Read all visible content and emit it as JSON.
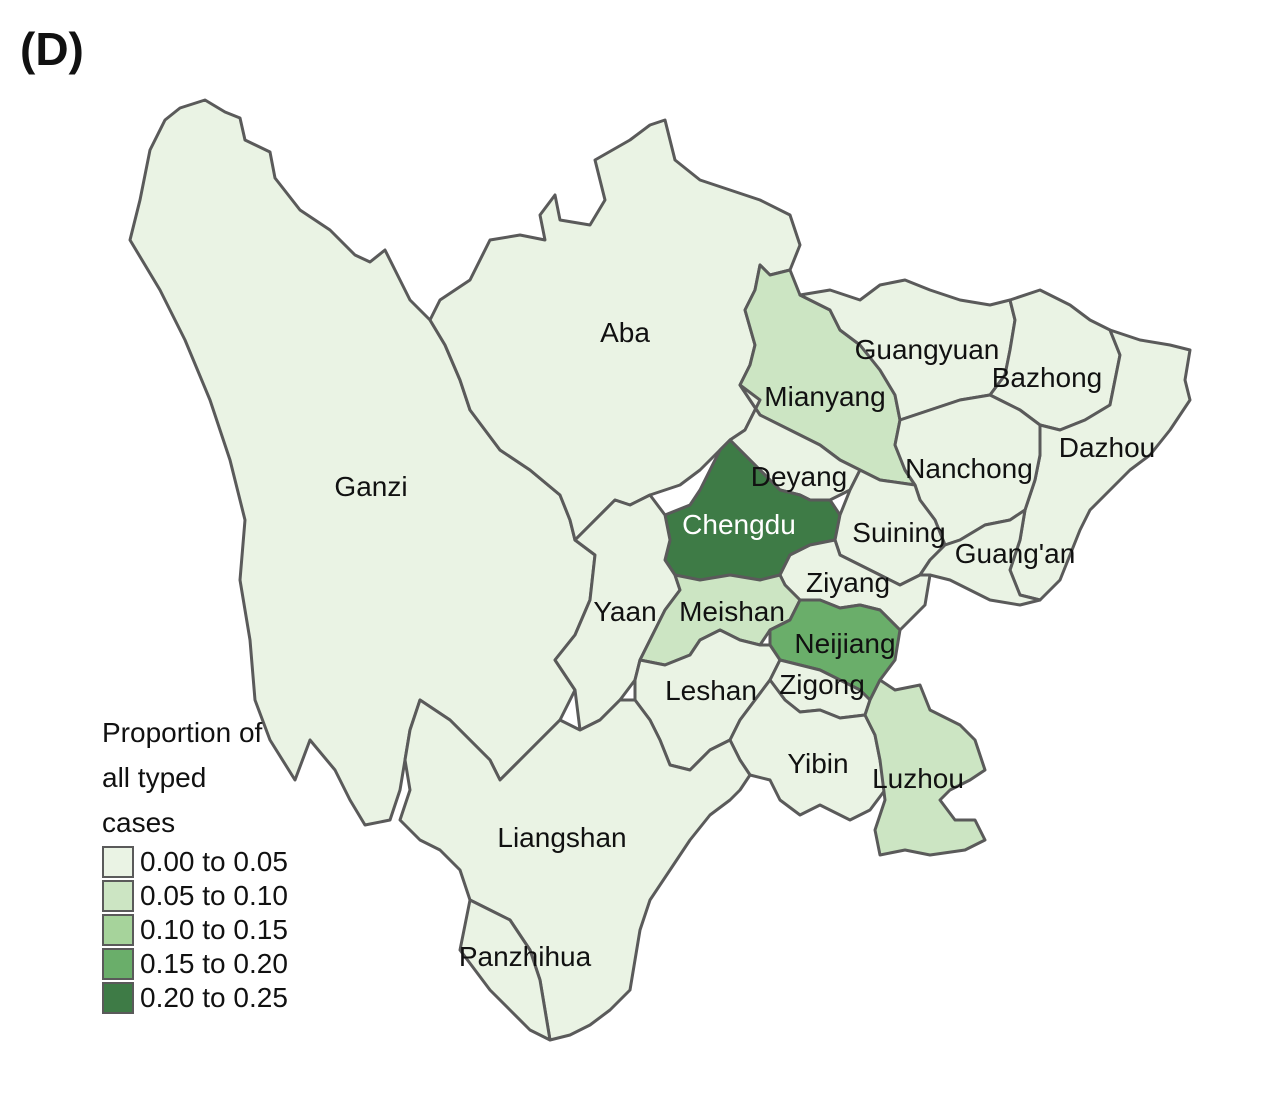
{
  "panel_label": "(D)",
  "colors": {
    "c0": "#eaf3e4",
    "c1": "#cce5c3",
    "c2": "#a6d39b",
    "c3": "#6aae6a",
    "c4": "#3e7b46",
    "border": "#5a5a5a"
  },
  "legend": {
    "title": "Proportion of\nall typed\ncases",
    "bins": [
      {
        "label": "0.00 to 0.05",
        "color": "#eaf3e4"
      },
      {
        "label": "0.05 to 0.10",
        "color": "#cce5c3"
      },
      {
        "label": "0.10 to 0.15",
        "color": "#a6d39b"
      },
      {
        "label": "0.15 to 0.20",
        "color": "#6aae6a"
      },
      {
        "label": "0.20 to 0.25",
        "color": "#3e7b46"
      }
    ]
  },
  "regions": [
    {
      "name": "Ganzi",
      "bin": 0
    },
    {
      "name": "Aba",
      "bin": 0
    },
    {
      "name": "Guangyuan",
      "bin": 0
    },
    {
      "name": "Bazhong",
      "bin": 0
    },
    {
      "name": "Dazhou",
      "bin": 0
    },
    {
      "name": "Mianyang",
      "bin": 1
    },
    {
      "name": "Nanchong",
      "bin": 0
    },
    {
      "name": "Deyang",
      "bin": 0
    },
    {
      "name": "Chengdu",
      "bin": 4
    },
    {
      "name": "Suining",
      "bin": 0
    },
    {
      "name": "Guang'an",
      "bin": 0
    },
    {
      "name": "Ziyang",
      "bin": 0
    },
    {
      "name": "Yaan",
      "bin": 0
    },
    {
      "name": "Meishan",
      "bin": 1
    },
    {
      "name": "Neijiang",
      "bin": 3
    },
    {
      "name": "Leshan",
      "bin": 0
    },
    {
      "name": "Zigong",
      "bin": 0
    },
    {
      "name": "Yibin",
      "bin": 0
    },
    {
      "name": "Luzhou",
      "bin": 1
    },
    {
      "name": "Liangshan",
      "bin": 0
    },
    {
      "name": "Panzhihua",
      "bin": 0
    }
  ]
}
